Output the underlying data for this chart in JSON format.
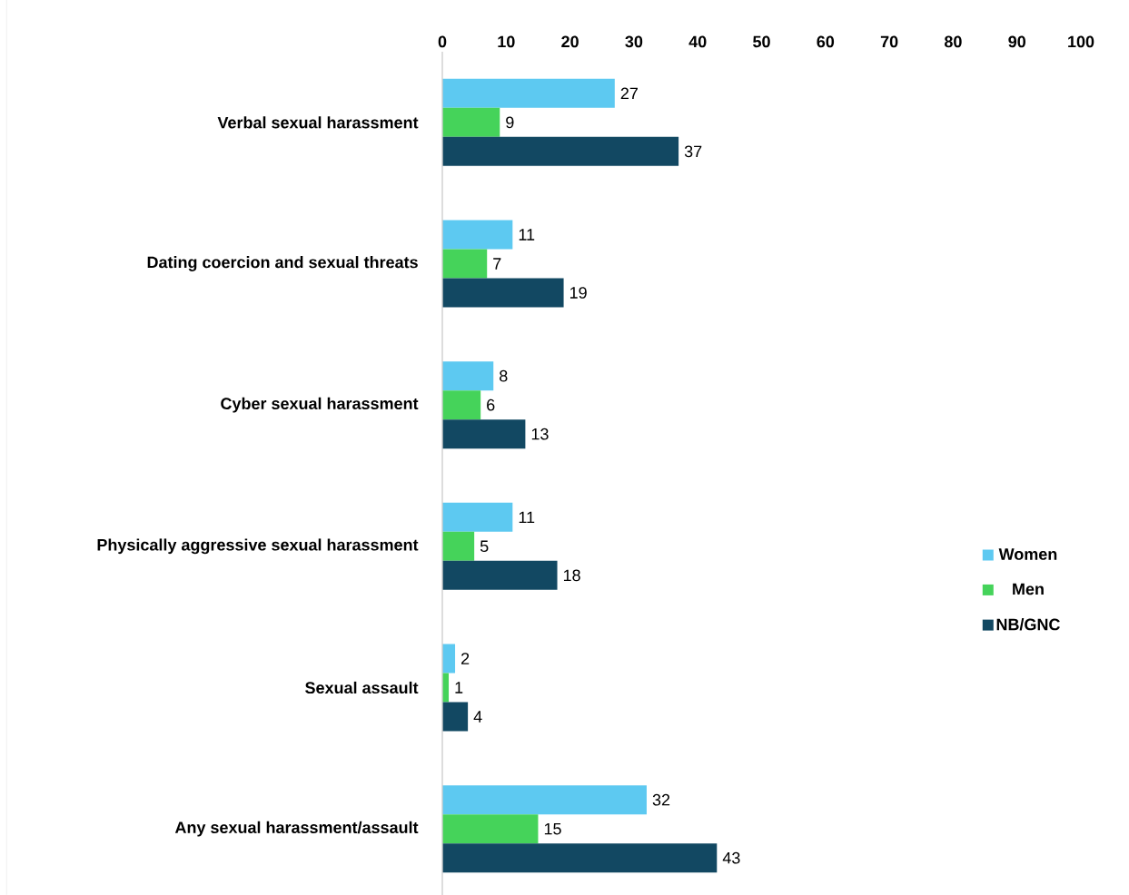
{
  "chart_data": {
    "type": "bar",
    "orientation": "horizontal",
    "categories": [
      "Verbal sexual harassment",
      "Dating coercion and sexual threats",
      "Cyber sexual harassment",
      "Physically aggressive sexual harassment",
      "Sexual assault",
      "Any sexual harassment/assault"
    ],
    "series": [
      {
        "name": "Women",
        "color": "#5dc9f1",
        "values": [
          27,
          11,
          8,
          11,
          2,
          32
        ]
      },
      {
        "name": "Men",
        "color": "#45d35a",
        "values": [
          9,
          7,
          6,
          5,
          1,
          15
        ]
      },
      {
        "name": "NB/GNC",
        "color": "#124862",
        "values": [
          37,
          19,
          13,
          18,
          4,
          43
        ]
      }
    ],
    "xlim": [
      0,
      100
    ],
    "xticks": [
      0,
      10,
      20,
      30,
      40,
      50,
      60,
      70,
      80,
      90,
      100
    ],
    "data_labels": true,
    "legend": "right",
    "grid": false
  }
}
